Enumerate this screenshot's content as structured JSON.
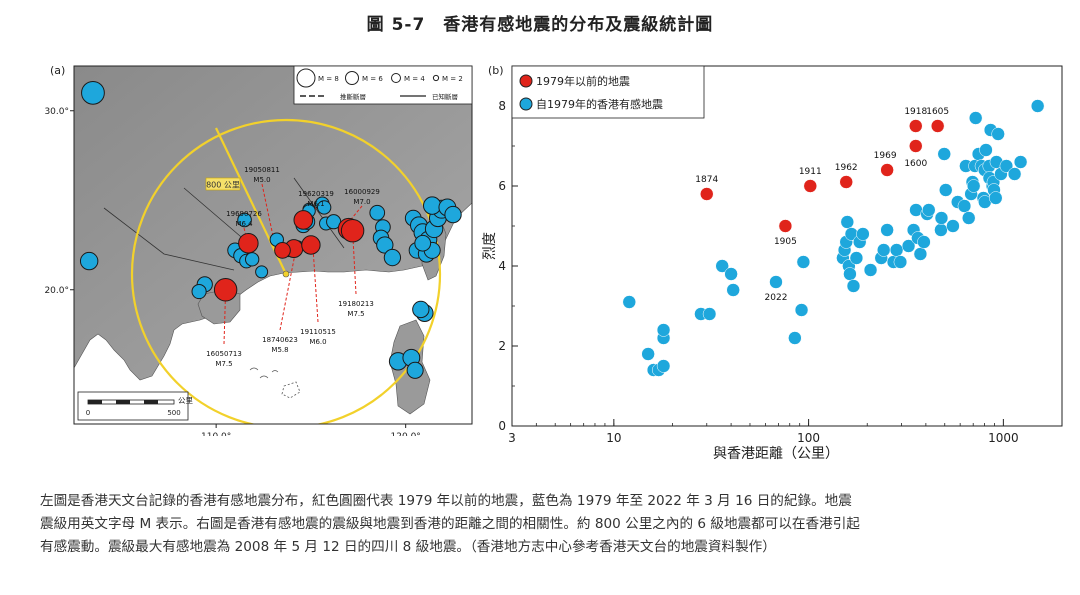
{
  "figure": {
    "title": "圖 5-7　香港有感地震的分布及震級統計圖",
    "caption": "左圖是香港天文台記錄的香港有感地震分布，紅色圓圈代表 1979 年以前的地震，藍色為 1979 年至 2022 年 3 月 16 日的紀錄。地震震級用英文字母 M 表示。右圖是香港有感地震的震級與地震到香港的距離之間的相關性。約 800 公里之內的 6 級地震都可以在香港引起有感震動。震級最大有感地震為 2008 年 5 月 12 日的四川 8 級地震。（香港地方志中心參考香港天文台的地震資料製作）"
  },
  "chart_data": [
    {
      "type": "scatter",
      "panel_label": "(a)",
      "xlim": [
        102.5,
        123.5
      ],
      "ylim": [
        12.5,
        32.5
      ],
      "x_ticks": [
        110,
        120
      ],
      "x_tick_labels": [
        "110.0°",
        "120.0°"
      ],
      "y_ticks": [
        20,
        30
      ],
      "y_tick_labels": [
        "20.0°",
        "30.0°"
      ],
      "legend": {
        "magnitudes": [
          "M = 8",
          "M = 6",
          "M = 4",
          "M = 2"
        ],
        "inferred_fault": "推斷斷層",
        "known_fault": "已知斷層"
      },
      "circle_label": "800 公里",
      "scale_bar": {
        "unit": "公里",
        "ticks": [
          "0",
          "500"
        ]
      },
      "labeled_events": [
        {
          "date": "19050811",
          "mag": "M5.0",
          "lon": 113.2,
          "lat": 22.0
        },
        {
          "date": "19620319",
          "mag": "M6.1",
          "lon": 114.6,
          "lat": 23.7
        },
        {
          "date": "16000929",
          "mag": "M7.0",
          "lon": 116.7,
          "lat": 23.4
        },
        {
          "date": "19690726",
          "mag": "M6.4",
          "lon": 111.7,
          "lat": 22.5
        },
        {
          "date": "18740623",
          "mag": "M5.8",
          "lon": 114.2,
          "lat": 22.2
        },
        {
          "date": "19110515",
          "mag": "M6.0",
          "lon": 115.1,
          "lat": 22.5
        },
        {
          "date": "19180213",
          "mag": "M7.5",
          "lon": 117.2,
          "lat": 23.3
        },
        {
          "date": "16050713",
          "mag": "M7.5",
          "lon": 110.5,
          "lat": 20.0
        }
      ],
      "pre1979": [
        {
          "lon": 111.7,
          "lat": 22.6,
          "m": 6.4
        },
        {
          "lon": 110.5,
          "lat": 20.0,
          "m": 7.5
        },
        {
          "lon": 114.1,
          "lat": 22.3,
          "m": 5.8
        },
        {
          "lon": 113.5,
          "lat": 22.2,
          "m": 5.0
        },
        {
          "lon": 115.0,
          "lat": 22.5,
          "m": 6.0
        },
        {
          "lon": 117.0,
          "lat": 23.4,
          "m": 7.0
        },
        {
          "lon": 117.2,
          "lat": 23.3,
          "m": 7.5
        },
        {
          "lon": 114.6,
          "lat": 23.9,
          "m": 6.1
        }
      ],
      "post1979": [
        {
          "lon": 103.5,
          "lat": 31.0,
          "m": 8.0
        },
        {
          "lon": 103.3,
          "lat": 21.6,
          "m": 6.0
        },
        {
          "lon": 109.4,
          "lat": 20.3,
          "m": 5.2
        },
        {
          "lon": 109.1,
          "lat": 19.9,
          "m": 4.8
        },
        {
          "lon": 111.0,
          "lat": 22.2,
          "m": 5.0
        },
        {
          "lon": 111.3,
          "lat": 21.9,
          "m": 4.8
        },
        {
          "lon": 111.6,
          "lat": 21.6,
          "m": 4.6
        },
        {
          "lon": 111.9,
          "lat": 21.7,
          "m": 4.5
        },
        {
          "lon": 111.5,
          "lat": 23.9,
          "m": 4.6
        },
        {
          "lon": 112.4,
          "lat": 21.0,
          "m": 4.0
        },
        {
          "lon": 113.2,
          "lat": 22.8,
          "m": 4.5
        },
        {
          "lon": 113.8,
          "lat": 22.2,
          "m": 4.2
        },
        {
          "lon": 114.3,
          "lat": 22.4,
          "m": 4.0
        },
        {
          "lon": 114.6,
          "lat": 23.6,
          "m": 5.0
        },
        {
          "lon": 114.8,
          "lat": 23.8,
          "m": 5.2
        },
        {
          "lon": 114.9,
          "lat": 24.5,
          "m": 4.0
        },
        {
          "lon": 115.6,
          "lat": 24.8,
          "m": 4.6
        },
        {
          "lon": 115.7,
          "lat": 24.6,
          "m": 4.5
        },
        {
          "lon": 115.8,
          "lat": 23.7,
          "m": 4.4
        },
        {
          "lon": 116.2,
          "lat": 23.8,
          "m": 4.8
        },
        {
          "lon": 118.5,
          "lat": 24.3,
          "m": 5.0
        },
        {
          "lon": 118.8,
          "lat": 23.5,
          "m": 5.0
        },
        {
          "lon": 118.7,
          "lat": 22.9,
          "m": 5.3
        },
        {
          "lon": 118.9,
          "lat": 22.5,
          "m": 5.6
        },
        {
          "lon": 119.3,
          "lat": 21.8,
          "m": 5.6
        },
        {
          "lon": 120.4,
          "lat": 24.0,
          "m": 5.4
        },
        {
          "lon": 120.7,
          "lat": 23.6,
          "m": 5.8
        },
        {
          "lon": 120.9,
          "lat": 23.2,
          "m": 6.0
        },
        {
          "lon": 121.2,
          "lat": 22.8,
          "m": 5.8
        },
        {
          "lon": 121.5,
          "lat": 23.4,
          "m": 6.0
        },
        {
          "lon": 121.7,
          "lat": 24.0,
          "m": 5.8
        },
        {
          "lon": 121.9,
          "lat": 24.5,
          "m": 6.2
        },
        {
          "lon": 121.4,
          "lat": 24.7,
          "m": 6.0
        },
        {
          "lon": 122.2,
          "lat": 24.6,
          "m": 5.8
        },
        {
          "lon": 122.5,
          "lat": 24.2,
          "m": 5.6
        },
        {
          "lon": 120.6,
          "lat": 22.2,
          "m": 5.4
        },
        {
          "lon": 121.1,
          "lat": 22.0,
          "m": 5.6
        },
        {
          "lon": 121.4,
          "lat": 22.2,
          "m": 5.5
        },
        {
          "lon": 120.9,
          "lat": 22.6,
          "m": 5.4
        },
        {
          "lon": 121.0,
          "lat": 18.7,
          "m": 5.8
        },
        {
          "lon": 120.8,
          "lat": 18.9,
          "m": 5.6
        },
        {
          "lon": 119.6,
          "lat": 16.0,
          "m": 6.0
        },
        {
          "lon": 120.3,
          "lat": 16.2,
          "m": 5.8
        },
        {
          "lon": 120.5,
          "lat": 15.5,
          "m": 5.5
        },
        {
          "lon": 114.9,
          "lat": 24.4,
          "m": 4.2
        }
      ]
    },
    {
      "type": "scatter",
      "panel_label": "(b)",
      "xlabel": "與香港距離（公里）",
      "ylabel": "烈度",
      "x_scale": "log",
      "xlim": [
        3,
        2000
      ],
      "ylim": [
        0,
        9
      ],
      "x_ticks": [
        3,
        10,
        100,
        1000
      ],
      "y_ticks": [
        0,
        2,
        4,
        6,
        8
      ],
      "legend_position": "top-left",
      "series": [
        {
          "name": "1979年以前的地震",
          "color": "#e0241b",
          "points": [
            {
              "x": 30,
              "y": 5.8,
              "label": "1874"
            },
            {
              "x": 76,
              "y": 5.0,
              "label": "1905"
            },
            {
              "x": 102,
              "y": 6.0,
              "label": "1911"
            },
            {
              "x": 156,
              "y": 6.1,
              "label": "1962"
            },
            {
              "x": 253,
              "y": 6.4,
              "label": "1969"
            },
            {
              "x": 355,
              "y": 7.0,
              "label": "1600"
            },
            {
              "x": 355,
              "y": 7.5,
              "label": "1918"
            },
            {
              "x": 460,
              "y": 7.5,
              "label": "1605"
            }
          ]
        },
        {
          "name": "自1979年的香港有感地震",
          "color": "#1ea7dc",
          "points": [
            {
              "x": 12,
              "y": 3.1
            },
            {
              "x": 15,
              "y": 1.8
            },
            {
              "x": 16,
              "y": 1.4
            },
            {
              "x": 17,
              "y": 1.4
            },
            {
              "x": 18,
              "y": 1.5
            },
            {
              "x": 18,
              "y": 2.2
            },
            {
              "x": 18,
              "y": 2.4
            },
            {
              "x": 28,
              "y": 2.8
            },
            {
              "x": 31,
              "y": 2.8
            },
            {
              "x": 36,
              "y": 4.0
            },
            {
              "x": 40,
              "y": 3.8
            },
            {
              "x": 41,
              "y": 3.4
            },
            {
              "x": 68,
              "y": 3.6,
              "label": "2022"
            },
            {
              "x": 85,
              "y": 2.2
            },
            {
              "x": 92,
              "y": 2.9
            },
            {
              "x": 94,
              "y": 4.1
            },
            {
              "x": 150,
              "y": 4.2
            },
            {
              "x": 153,
              "y": 4.4
            },
            {
              "x": 156,
              "y": 4.6
            },
            {
              "x": 158,
              "y": 5.1
            },
            {
              "x": 161,
              "y": 4.0
            },
            {
              "x": 163,
              "y": 3.8
            },
            {
              "x": 166,
              "y": 4.8
            },
            {
              "x": 170,
              "y": 3.5
            },
            {
              "x": 176,
              "y": 4.2
            },
            {
              "x": 183,
              "y": 4.6
            },
            {
              "x": 190,
              "y": 4.8
            },
            {
              "x": 208,
              "y": 3.9
            },
            {
              "x": 236,
              "y": 4.2
            },
            {
              "x": 243,
              "y": 4.4
            },
            {
              "x": 253,
              "y": 4.9
            },
            {
              "x": 273,
              "y": 4.1
            },
            {
              "x": 283,
              "y": 4.4
            },
            {
              "x": 296,
              "y": 4.1
            },
            {
              "x": 326,
              "y": 4.5
            },
            {
              "x": 346,
              "y": 4.9
            },
            {
              "x": 356,
              "y": 5.4
            },
            {
              "x": 364,
              "y": 4.7
            },
            {
              "x": 375,
              "y": 4.3
            },
            {
              "x": 391,
              "y": 4.6
            },
            {
              "x": 406,
              "y": 5.3
            },
            {
              "x": 414,
              "y": 5.4
            },
            {
              "x": 478,
              "y": 4.9
            },
            {
              "x": 481,
              "y": 5.2
            },
            {
              "x": 497,
              "y": 6.8
            },
            {
              "x": 506,
              "y": 5.9
            },
            {
              "x": 551,
              "y": 5.0
            },
            {
              "x": 583,
              "y": 5.6
            },
            {
              "x": 631,
              "y": 5.5
            },
            {
              "x": 642,
              "y": 6.5
            },
            {
              "x": 664,
              "y": 5.2
            },
            {
              "x": 683,
              "y": 5.8
            },
            {
              "x": 694,
              "y": 6.1
            },
            {
              "x": 704,
              "y": 6.0
            },
            {
              "x": 715,
              "y": 6.5
            },
            {
              "x": 721,
              "y": 7.7
            },
            {
              "x": 746,
              "y": 6.8
            },
            {
              "x": 772,
              "y": 6.5
            },
            {
              "x": 790,
              "y": 5.7
            },
            {
              "x": 802,
              "y": 6.4
            },
            {
              "x": 803,
              "y": 5.6
            },
            {
              "x": 814,
              "y": 6.9
            },
            {
              "x": 846,
              "y": 6.5
            },
            {
              "x": 848,
              "y": 6.2
            },
            {
              "x": 860,
              "y": 7.4
            },
            {
              "x": 880,
              "y": 6.0
            },
            {
              "x": 889,
              "y": 6.1
            },
            {
              "x": 895,
              "y": 5.9
            },
            {
              "x": 914,
              "y": 5.7
            },
            {
              "x": 921,
              "y": 6.6
            },
            {
              "x": 940,
              "y": 7.3
            },
            {
              "x": 972,
              "y": 6.3
            },
            {
              "x": 1036,
              "y": 6.5
            },
            {
              "x": 1142,
              "y": 6.3
            },
            {
              "x": 1226,
              "y": 6.6
            },
            {
              "x": 1500,
              "y": 8.0
            }
          ]
        }
      ]
    }
  ]
}
